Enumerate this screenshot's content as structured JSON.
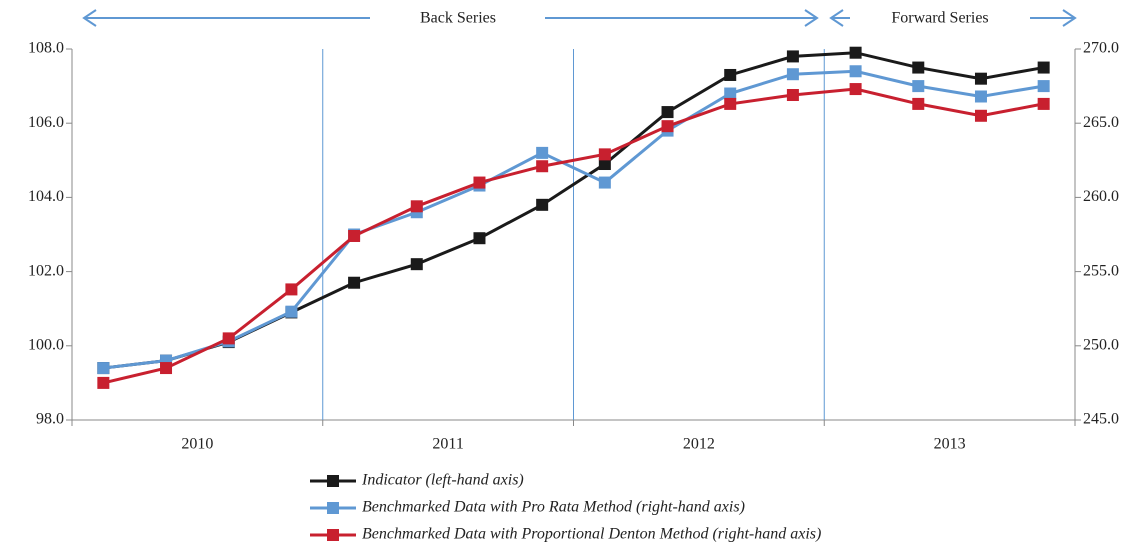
{
  "chart_data": {
    "type": "line",
    "annotations": [
      "Back Series",
      "Forward Series"
    ],
    "categories": [
      null,
      null,
      null,
      null,
      null,
      null,
      null,
      null,
      null,
      null,
      null,
      null,
      null,
      null,
      null,
      null
    ],
    "x_groups": [
      "2010",
      "2011",
      "2012",
      "2013"
    ],
    "ylim": [
      98,
      108
    ],
    "yticks": [
      {
        "value": 98,
        "label": "98.0"
      },
      {
        "value": 100,
        "label": "100.0"
      },
      {
        "value": 102,
        "label": "102.0"
      },
      {
        "value": 104,
        "label": "104.0"
      },
      {
        "value": 106,
        "label": "106.0"
      },
      {
        "value": 108,
        "label": "108.0"
      }
    ],
    "y2lim": [
      245,
      270
    ],
    "y2ticks": [
      {
        "value": 245,
        "label": "245.0"
      },
      {
        "value": 250,
        "label": "250.0"
      },
      {
        "value": 255,
        "label": "255.0"
      },
      {
        "value": 260,
        "label": "260.0"
      },
      {
        "value": 265,
        "label": "265.0"
      },
      {
        "value": 270,
        "label": "270.0"
      }
    ],
    "series": [
      {
        "name": "Indicator (left-hand axis)",
        "color": "#1a1a1a",
        "values": [
          99.4,
          99.6,
          100.1,
          100.9,
          101.7,
          102.2,
          102.9,
          103.8,
          104.9,
          106.3,
          107.3,
          107.8,
          107.9,
          107.5,
          107.2,
          107.5
        ]
      },
      {
        "name": "Benchmarked Data with Pro Rata Method (right-hand axis)",
        "color": "#5f98d3",
        "axis": "y2",
        "values": [
          248.5,
          249.0,
          250.3,
          252.3,
          257.5,
          259.0,
          260.8,
          263.0,
          261.0,
          264.5,
          267.0,
          268.3,
          268.5,
          267.5,
          266.8,
          267.5
        ]
      },
      {
        "name": "Benchmarked Data with Proportional Denton Method (right-hand axis)",
        "color": "#c8202f",
        "axis": "y2",
        "values": [
          247.5,
          248.5,
          250.5,
          253.8,
          257.4,
          259.4,
          261.0,
          262.1,
          262.9,
          264.8,
          266.3,
          266.9,
          267.3,
          266.3,
          265.5,
          266.3
        ]
      }
    ]
  }
}
